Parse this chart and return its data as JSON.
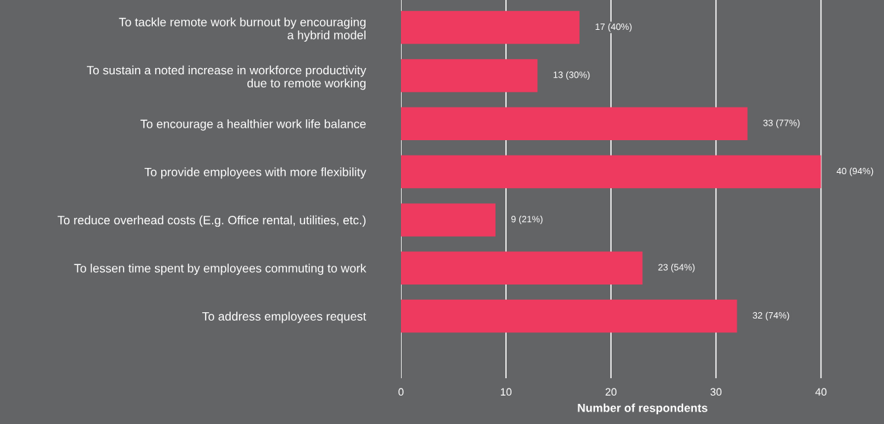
{
  "chart_data": {
    "type": "bar",
    "orientation": "horizontal",
    "xlabel": "Number of respondents",
    "categories": [
      "To tackle remote work burnout by encouraging\na hybrid model",
      "To sustain a noted increase in workforce productivity\ndue to remote working",
      "To encourage a healthier work life balance",
      "To provide employees with more flexibility",
      "To reduce overhead costs (E.g. Office rental, utilities, etc.)",
      "To lessen time spent by employees commuting to work",
      "To address employees request"
    ],
    "values": [
      17,
      13,
      33,
      40,
      9,
      23,
      32
    ],
    "value_labels": [
      "17 (40%)",
      "13 (30%)",
      "33 (77%)",
      "40 (94%)",
      "9 (21%)",
      "23 (54%)",
      "32 (74%)"
    ],
    "color": "#ee3a5f",
    "xlim": [
      0,
      46
    ],
    "xticks": [
      0,
      10,
      20,
      30,
      40
    ],
    "grid": "x"
  }
}
